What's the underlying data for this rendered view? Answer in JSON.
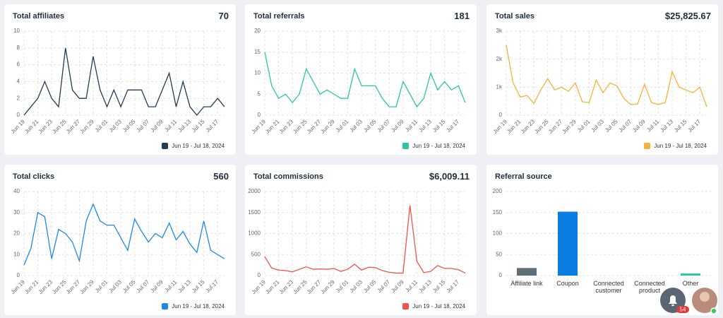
{
  "chart_data": [
    {
      "type": "line",
      "title": "Total affiliates",
      "total": "70",
      "categories": [
        "Jun 19",
        null,
        "Jun 21",
        null,
        "Jun 23",
        null,
        "Jun 25",
        null,
        "Jun 27",
        null,
        "Jun 29",
        null,
        "Jul 01",
        null,
        "Jul 03",
        null,
        "Jul 05",
        null,
        "Jul 07",
        null,
        "Jul 09",
        null,
        "Jul 11",
        null,
        "Jul 13",
        null,
        "Jul 15",
        null,
        "Jul 17",
        null
      ],
      "series": [
        {
          "name": "Jun 19 - Jul 18, 2024",
          "color": "#243b55",
          "values": [
            0,
            1,
            2,
            4,
            2,
            1,
            8,
            3,
            2,
            2,
            7,
            3,
            1,
            3,
            1,
            3,
            3,
            3,
            1,
            1,
            3,
            5,
            1,
            4,
            1,
            0,
            1,
            1,
            2,
            1
          ]
        }
      ],
      "ylim": [
        0,
        10
      ],
      "yticks": [
        0,
        2,
        4,
        6,
        8,
        10
      ],
      "grid": true
    },
    {
      "type": "line",
      "title": "Total referrals",
      "total": "181",
      "categories": [
        "Jun 19",
        null,
        "Jun 21",
        null,
        "Jun 23",
        null,
        "Jun 25",
        null,
        "Jun 27",
        null,
        "Jun 29",
        null,
        "Jul 01",
        null,
        "Jul 03",
        null,
        "Jul 05",
        null,
        "Jul 07",
        null,
        "Jul 09",
        null,
        "Jul 11",
        null,
        "Jul 13",
        null,
        "Jul 15",
        null,
        "Jul 17",
        null
      ],
      "series": [
        {
          "name": "Jun 19 - Jul 18, 2024",
          "color": "#2ec4a6",
          "values": [
            15,
            7,
            4,
            5,
            3,
            5,
            11,
            8,
            5,
            6,
            5,
            4,
            4,
            11,
            7,
            7,
            7,
            4,
            2,
            2,
            8,
            5,
            2,
            4,
            10,
            6,
            8,
            6,
            7,
            3
          ]
        }
      ],
      "ylim": [
        0,
        20
      ],
      "yticks": [
        0,
        5,
        10,
        15,
        20
      ],
      "grid": true
    },
    {
      "type": "line",
      "title": "Total sales",
      "total": "$25,825.67",
      "categories": [
        "Jun 19",
        null,
        "Jun 21",
        null,
        "Jun 23",
        null,
        "Jun 25",
        null,
        "Jun 27",
        null,
        "Jun 29",
        null,
        "Jul 01",
        null,
        "Jul 03",
        null,
        "Jul 05",
        null,
        "Jul 07",
        null,
        "Jul 09",
        null,
        "Jul 11",
        null,
        "Jul 13",
        null,
        "Jul 15",
        null,
        "Jul 17",
        null
      ],
      "series": [
        {
          "name": "Jun 19 - Jul 18, 2024",
          "color": "#f2b23e",
          "values": [
            2500,
            1150,
            650,
            700,
            420,
            900,
            1300,
            900,
            1000,
            850,
            1150,
            480,
            450,
            1250,
            800,
            1150,
            1050,
            600,
            380,
            400,
            1100,
            450,
            380,
            450,
            1550,
            1000,
            900,
            800,
            1000,
            300
          ]
        }
      ],
      "ylim": [
        0,
        3000
      ],
      "yticks": [
        0,
        {
          "value": 1000,
          "label": "1k"
        },
        {
          "value": 2000,
          "label": "2k"
        },
        {
          "value": 3000,
          "label": "3k"
        }
      ],
      "grid": true
    },
    {
      "type": "line",
      "title": "Total clicks",
      "total": "560",
      "categories": [
        "Jun 19",
        null,
        "Jun 21",
        null,
        "Jun 23",
        null,
        "Jun 25",
        null,
        "Jun 27",
        null,
        "Jun 29",
        null,
        "Jul 01",
        null,
        "Jul 03",
        null,
        "Jul 05",
        null,
        "Jul 07",
        null,
        "Jul 09",
        null,
        "Jul 11",
        null,
        "Jul 13",
        null,
        "Jul 15",
        null,
        "Jul 17",
        null
      ],
      "series": [
        {
          "name": "Jun 19 - Jul 18, 2024",
          "color": "#1e88e5",
          "values": [
            5,
            13,
            30,
            28,
            8,
            22,
            20,
            16,
            7,
            26,
            34,
            26,
            24,
            24,
            18,
            12,
            27,
            21,
            16,
            20,
            18,
            25,
            17,
            21,
            15,
            11,
            26,
            12,
            10,
            8
          ]
        }
      ],
      "ylim": [
        0,
        40
      ],
      "yticks": [
        0,
        10,
        20,
        30,
        40
      ],
      "grid": true
    },
    {
      "type": "line",
      "title": "Total commissions",
      "total": "$6,009.11",
      "categories": [
        "Jun 19",
        null,
        "Jun 21",
        null,
        "Jun 23",
        null,
        "Jun 25",
        null,
        "Jun 27",
        null,
        "Jun 29",
        null,
        "Jul 01",
        null,
        "Jul 03",
        null,
        "Jul 05",
        null,
        "Jul 07",
        null,
        "Jul 09",
        null,
        "Jul 11",
        null,
        "Jul 13",
        null,
        "Jul 15",
        null,
        "Jul 17",
        null
      ],
      "series": [
        {
          "name": "Jun 19 - Jul 18, 2024",
          "color": "#ef5350",
          "values": [
            450,
            180,
            130,
            120,
            90,
            150,
            210,
            150,
            160,
            150,
            170,
            100,
            150,
            270,
            130,
            200,
            190,
            120,
            80,
            60,
            60,
            1670,
            340,
            70,
            100,
            240,
            170,
            170,
            140,
            60
          ]
        }
      ],
      "ylim": [
        0,
        2000
      ],
      "yticks": [
        0,
        500,
        1000,
        1500,
        2000
      ],
      "grid": true
    },
    {
      "type": "bar",
      "title": "Referral source",
      "categories": [
        "Affiliate link",
        "Coupon",
        "Connected customer",
        "Connected product",
        "Other"
      ],
      "values": [
        18,
        152,
        0,
        0,
        5
      ],
      "colors": [
        "#5f6f7a",
        "#0a7ee0",
        "#9aa5ad",
        "#9aa5ad",
        "#2bc9a0"
      ],
      "ylim": [
        0,
        200
      ],
      "yticks": [
        0,
        50,
        100,
        150,
        200
      ],
      "grid": true
    }
  ],
  "notification_badge": 54
}
